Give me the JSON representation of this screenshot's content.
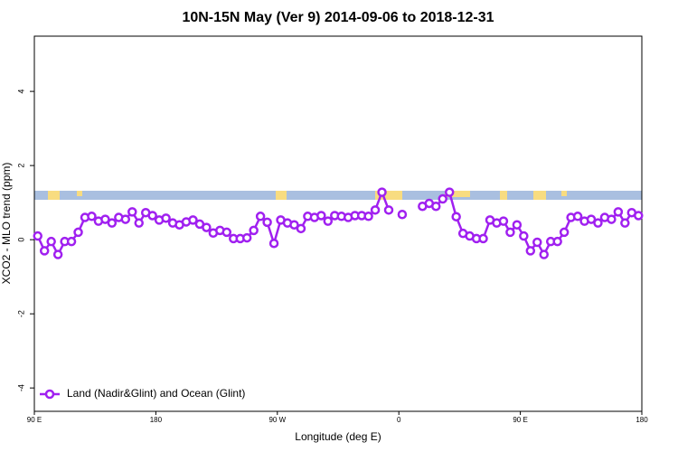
{
  "chart_data": {
    "type": "line",
    "title": "10N-15N May (Ver 9)   2014-09-06 to 2018-12-31",
    "x_label": "Longitude (deg E)",
    "y_label": "XCO2 - MLO trend (ppm)",
    "x": [
      92.5,
      97.5,
      102.5,
      107.5,
      112.5,
      117.5,
      122.5,
      127.5,
      132.5,
      137.5,
      142.5,
      147.5,
      152.5,
      157.5,
      162.5,
      167.5,
      172.5,
      177.5,
      182.5,
      187.5,
      192.5,
      197.5,
      202.5,
      207.5,
      212.5,
      217.5,
      222.5,
      227.5,
      232.5,
      237.5,
      242.5,
      247.5,
      252.5,
      257.5,
      262.5,
      267.5,
      272.5,
      277.5,
      282.5,
      287.5,
      292.5,
      297.5,
      302.5,
      307.5,
      312.5,
      317.5,
      322.5,
      327.5,
      332.5,
      337.5,
      342.5,
      347.5,
      352.5,
      357.5,
      362.5,
      367.5,
      372.5,
      377.5,
      382.5,
      387.5,
      392.5,
      397.5,
      402.5,
      407.5,
      412.5,
      417.5,
      422.5,
      427.5,
      432.5,
      437.5,
      442.5,
      447.5,
      452.5,
      457.5,
      462.5,
      467.5,
      472.5,
      477.5,
      482.5,
      487.5,
      492.5,
      497.5,
      502.5,
      507.5,
      512.5,
      517.5,
      522.5,
      527.5,
      532.5,
      537.5
    ],
    "series": [
      {
        "name": "Land (Nadir&Glint) and Ocean (Glint)",
        "color": "#a020f0",
        "values": [
          0.1,
          -0.3,
          -0.05,
          -0.4,
          -0.05,
          -0.05,
          0.2,
          0.6,
          0.63,
          0.5,
          0.55,
          0.45,
          0.6,
          0.55,
          0.75,
          0.45,
          0.73,
          0.65,
          0.53,
          0.58,
          0.45,
          0.4,
          0.48,
          0.53,
          0.42,
          0.33,
          0.18,
          0.25,
          0.2,
          0.03,
          0.03,
          0.05,
          0.25,
          0.63,
          0.47,
          -0.1,
          0.53,
          0.45,
          0.4,
          0.3,
          0.63,
          0.6,
          0.65,
          0.5,
          0.65,
          0.63,
          0.6,
          0.65,
          0.65,
          0.63,
          0.8,
          1.28,
          0.8,
          null,
          0.68,
          null,
          null,
          0.9,
          0.98,
          0.9,
          1.1,
          1.28,
          0.62,
          0.17,
          0.1,
          0.03,
          0.03,
          0.53,
          0.45,
          0.5,
          0.2,
          0.4,
          0.1,
          -0.3,
          -0.07,
          -0.4,
          -0.05,
          -0.05,
          0.2,
          0.6,
          0.63,
          0.5,
          0.55,
          0.45,
          0.6,
          0.55,
          0.75,
          0.45,
          0.73,
          0.65
        ]
      }
    ],
    "xlim": [
      90,
      540
    ],
    "xticks": [
      {
        "value": 90,
        "label": "90 E"
      },
      180,
      {
        "value": 270,
        "label": "90 W"
      },
      {
        "value": 360,
        "label": "0"
      },
      {
        "value": 450,
        "label": "90 E"
      },
      {
        "value": 540,
        "label": "180"
      }
    ],
    "ylim": [
      -4.63,
      5.49
    ],
    "yticks": [
      4,
      2,
      0,
      -2,
      -4
    ],
    "legend": "bottomleft"
  }
}
